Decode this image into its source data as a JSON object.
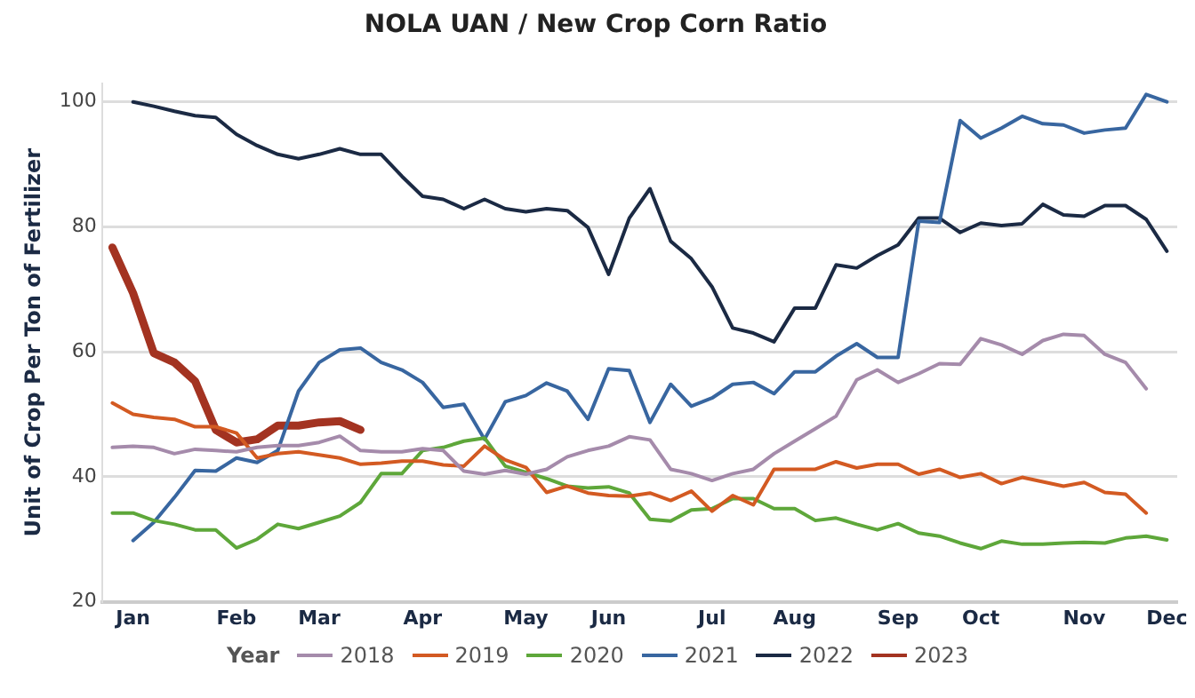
{
  "chart_data": {
    "type": "line",
    "title": "NOLA UAN / New Crop Corn Ratio",
    "ylabel": "Unit of Crop Per Ton of Fertilizer",
    "legend_title": "Year",
    "legend": "bottom",
    "grid": "y",
    "marker": "none",
    "categories": [
      null,
      "Jan",
      null,
      null,
      null,
      null,
      "Feb",
      null,
      null,
      null,
      "Mar",
      null,
      null,
      null,
      null,
      "Apr",
      null,
      null,
      null,
      null,
      "May",
      null,
      null,
      null,
      "Jun",
      null,
      null,
      null,
      null,
      "Jul",
      null,
      null,
      null,
      "Aug",
      null,
      null,
      null,
      null,
      "Sep",
      null,
      null,
      null,
      "Oct",
      null,
      null,
      null,
      null,
      "Nov",
      null,
      null,
      null,
      "Dec"
    ],
    "ylim": [
      20,
      103
    ],
    "yticks": [
      20,
      40,
      60,
      80,
      100
    ],
    "series": [
      {
        "name": "2018",
        "color": "#a58bab",
        "values": [
          44.7,
          44.9,
          44.7,
          43.7,
          44.4,
          44.2,
          44,
          44.7,
          45,
          45,
          45.5,
          46.5,
          44.2,
          44,
          44,
          44.5,
          44.2,
          40.9,
          40.4,
          41,
          40.4,
          41.2,
          43.2,
          44.2,
          44.9,
          46.4,
          45.9,
          41.2,
          40.5,
          39.4,
          40.5,
          41.2,
          43.7,
          45.7,
          47.7,
          49.7,
          55.5,
          57.1,
          55.1,
          56.5,
          58.1,
          58,
          62.1,
          61.1,
          59.6,
          61.8,
          62.8,
          62.6,
          59.6,
          58.3,
          54.1,
          null
        ]
      },
      {
        "name": "2019",
        "color": "#d35a22",
        "values": [
          51.8,
          50,
          49.5,
          49.2,
          48,
          48,
          47,
          43,
          43.7,
          44,
          43.5,
          43,
          42,
          42.2,
          42.5,
          42.5,
          41.9,
          41.7,
          44.9,
          42.7,
          41.5,
          37.5,
          38.5,
          37.4,
          37,
          36.9,
          37.4,
          36.2,
          37.7,
          34.5,
          37,
          35.5,
          41.2,
          41.2,
          41.2,
          42.4,
          41.4,
          42,
          42,
          40.4,
          41.2,
          39.9,
          40.5,
          38.9,
          39.9,
          39.2,
          38.5,
          39.1,
          37.5,
          37.2,
          34.2,
          null
        ]
      },
      {
        "name": "2020",
        "color": "#5ea73a",
        "values": [
          34.2,
          34.2,
          33,
          32.4,
          31.5,
          31.5,
          28.6,
          30,
          32.4,
          31.7,
          32.7,
          33.7,
          35.9,
          40.5,
          40.5,
          44.2,
          44.7,
          45.7,
          46.2,
          41.7,
          40.7,
          39.7,
          38.5,
          38.2,
          38.4,
          37.4,
          33.2,
          32.9,
          34.7,
          34.9,
          36.5,
          36.5,
          34.9,
          34.9,
          33,
          33.4,
          32.4,
          31.5,
          32.5,
          31,
          30.5,
          29.4,
          28.5,
          29.7,
          29.2,
          29.2,
          29.4,
          29.5,
          29.4,
          30.2,
          30.5,
          29.9
        ]
      },
      {
        "name": "2021",
        "color": "#3866a0",
        "values": [
          null,
          29.8,
          32.7,
          36.7,
          41,
          40.9,
          43,
          42.3,
          44.2,
          53.7,
          58.3,
          60.3,
          60.6,
          58.3,
          57.1,
          55.1,
          51.1,
          51.6,
          46,
          52,
          53,
          55,
          53.7,
          49.2,
          57.3,
          57,
          48.7,
          54.8,
          51.3,
          52.6,
          54.8,
          55.1,
          53.3,
          56.8,
          56.8,
          59.3,
          61.3,
          59.1,
          59.1,
          80.9,
          80.7,
          97,
          94.2,
          95.8,
          97.7,
          96.5,
          96.3,
          95,
          95.5,
          95.8,
          101.2,
          100
        ]
      },
      {
        "name": "2022",
        "color": "#1b2a44",
        "values": [
          null,
          100,
          99.3,
          98.5,
          97.8,
          97.5,
          94.8,
          93,
          91.6,
          90.9,
          91.6,
          92.5,
          91.6,
          91.6,
          88.1,
          84.9,
          84.4,
          82.9,
          84.4,
          82.9,
          82.4,
          82.9,
          82.6,
          79.9,
          72.4,
          81.4,
          86.1,
          77.7,
          74.9,
          70.4,
          63.8,
          63,
          61.6,
          67,
          67,
          73.9,
          73.4,
          75.4,
          77.1,
          81.4,
          81.4,
          79.1,
          80.6,
          80.2,
          80.5,
          83.6,
          81.9,
          81.7,
          83.4,
          83.4,
          81.2,
          76.1
        ]
      },
      {
        "name": "2023",
        "color": "#a33321",
        "values": [
          76.7,
          69.4,
          59.8,
          58.3,
          55.3,
          47.5,
          45.5,
          46,
          48.2,
          48.2,
          48.7,
          48.9,
          47.5,
          null,
          null,
          null,
          null,
          null,
          null,
          null,
          null,
          null,
          null,
          null,
          null,
          null,
          null,
          null,
          null,
          null,
          null,
          null,
          null,
          null,
          null,
          null,
          null,
          null,
          null,
          null,
          null,
          null,
          null,
          null,
          null,
          null,
          null,
          null,
          null,
          null,
          null,
          null
        ]
      }
    ]
  }
}
